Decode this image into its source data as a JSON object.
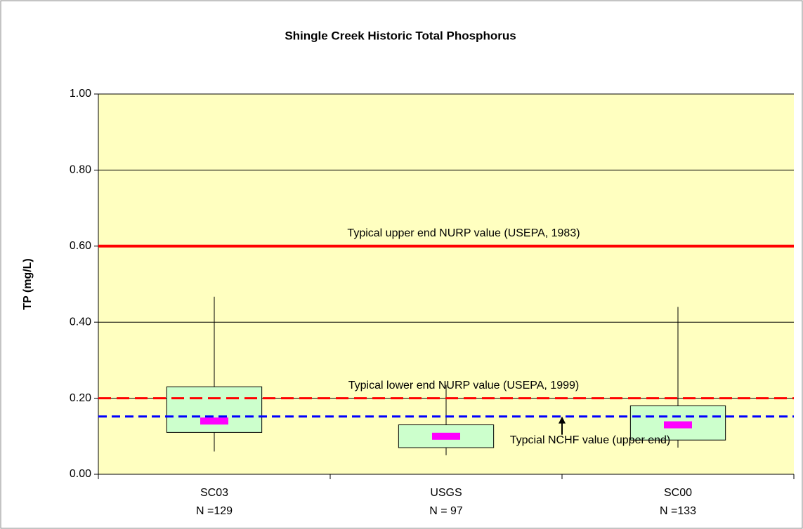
{
  "chart_data": {
    "type": "box",
    "title": "Shingle Creek Historic Total Phosphorus",
    "y_label": "TP (mg/L)",
    "categories": [
      "SC03",
      "USGS",
      "SC00"
    ],
    "n_labels": [
      "N =129",
      "N = 97",
      "N =133"
    ],
    "boxes": [
      {
        "whisker_low": 0.06,
        "q1": 0.11,
        "median": 0.14,
        "q3": 0.23,
        "whisker_high": 0.467
      },
      {
        "whisker_low": 0.05,
        "q1": 0.07,
        "median": 0.1,
        "q3": 0.13,
        "whisker_high": 0.235
      },
      {
        "whisker_low": 0.07,
        "q1": 0.09,
        "median": 0.13,
        "q3": 0.18,
        "whisker_high": 0.44
      }
    ],
    "box_color": "#ccffcc",
    "median_color": "#ff00ff",
    "plot_background": "#ffffc0",
    "ylim": [
      0,
      1
    ],
    "yticks": [
      {
        "value": 0,
        "label": "0.00"
      },
      {
        "value": 0.2,
        "label": "0.20"
      },
      {
        "value": 0.4,
        "label": "0.40"
      },
      {
        "value": 0.6,
        "label": "0.60"
      },
      {
        "value": 0.8,
        "label": "0.80"
      },
      {
        "value": 1,
        "label": "1.00"
      }
    ],
    "grid": true,
    "reference_lines": [
      {
        "value": 0.6,
        "label": "Typical upper end NURP value (USEPA, 1983)",
        "color": "#ff0000",
        "style": "solid",
        "label_position": "above"
      },
      {
        "value": 0.2,
        "label": "Typical lower end NURP value (USEPA, 1999)",
        "color": "#ff0000",
        "style": "dashed",
        "label_position": "above"
      },
      {
        "value": 0.152,
        "label": "Typcial NCHF value (upper end)",
        "color": "#0000ff",
        "style": "dashed",
        "label_position": "below"
      }
    ]
  }
}
